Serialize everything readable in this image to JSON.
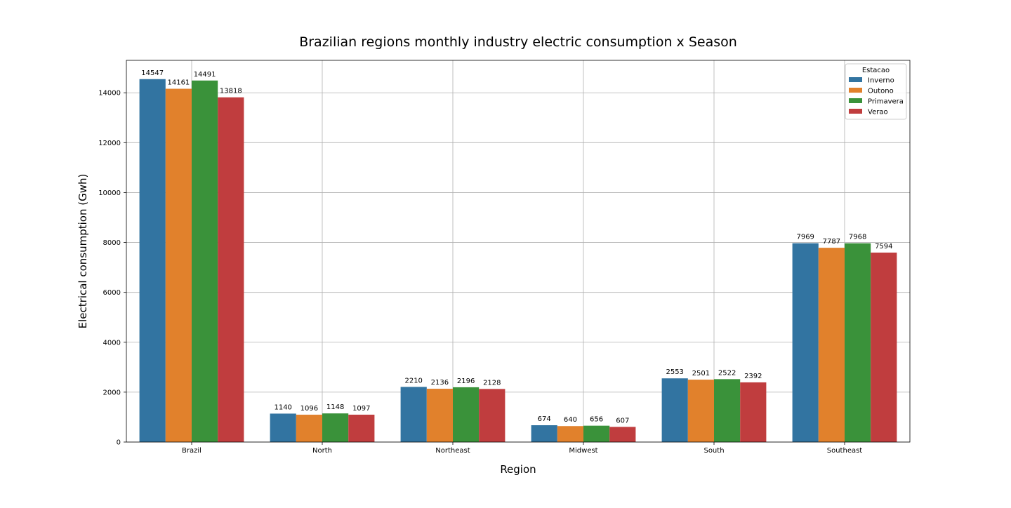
{
  "chart_data": {
    "type": "bar",
    "title": "Brazilian regions monthly industry electric consumption x Season",
    "xlabel": "Region",
    "ylabel": "Electrical consumption (Gwh)",
    "categories": [
      "Brazil",
      "North",
      "Northeast",
      "Midwest",
      "South",
      "Southeast"
    ],
    "series": [
      {
        "name": "Inverno",
        "color": "#3274a1",
        "values": [
          14547,
          1140,
          2210,
          674,
          2553,
          7969
        ]
      },
      {
        "name": "Outono",
        "color": "#e1812c",
        "values": [
          14161,
          1096,
          2136,
          640,
          2501,
          7787
        ]
      },
      {
        "name": "Primavera",
        "color": "#3a923a",
        "values": [
          14491,
          1148,
          2196,
          656,
          2522,
          7968
        ]
      },
      {
        "name": "Verao",
        "color": "#c03d3e",
        "values": [
          13818,
          1097,
          2128,
          607,
          2392,
          7594
        ]
      }
    ],
    "ylim": [
      0,
      15300
    ],
    "yticks": [
      0,
      2000,
      4000,
      6000,
      8000,
      10000,
      12000,
      14000
    ],
    "grid": true,
    "legend": {
      "title": "Estacao",
      "placement": "top-right"
    },
    "data_labels": true
  }
}
